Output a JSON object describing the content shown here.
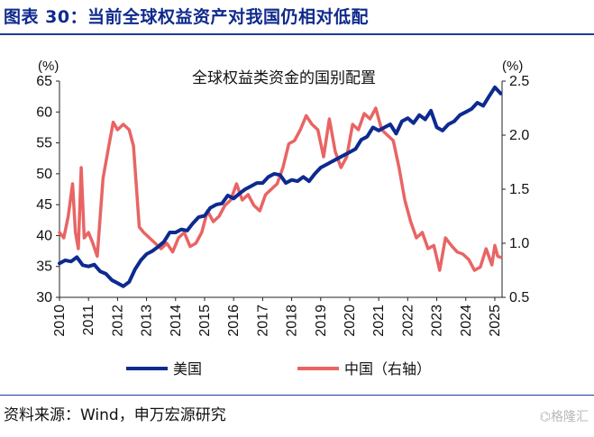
{
  "header": {
    "title": "图表 30：当前全球权益资产对我国仍相对低配"
  },
  "footer": {
    "source": "资料来源：Wind，申万宏源研究",
    "watermark": "⌬格隆汇"
  },
  "chart_data": {
    "type": "line",
    "title": "全球权益类资金的国别配置",
    "y_left": {
      "unit": "(%)",
      "ylim": [
        30,
        65
      ],
      "ticks": [
        "30",
        "35",
        "40",
        "45",
        "50",
        "55",
        "60",
        "65"
      ]
    },
    "y_right": {
      "unit": "(%)",
      "ylim": [
        0.5,
        2.5
      ],
      "ticks": [
        "0.5",
        "1.0",
        "1.5",
        "2.0",
        "2.5"
      ]
    },
    "x_ticks": [
      "2010",
      "2011",
      "2012",
      "2013",
      "2014",
      "2015",
      "2016",
      "2017",
      "2018",
      "2019",
      "2020",
      "2021",
      "2022",
      "2023",
      "2024",
      "2025"
    ],
    "x_range": [
      2010.0,
      2025.25
    ],
    "grid": false,
    "legend_position": "bottom",
    "colors": {
      "us": "#0d2a8f",
      "china": "#e96464"
    },
    "series": [
      {
        "name": "美国",
        "axis": "left",
        "x": [
          2010.0,
          2010.2,
          2010.4,
          2010.6,
          2010.8,
          2011.0,
          2011.2,
          2011.4,
          2011.6,
          2011.8,
          2012.0,
          2012.2,
          2012.4,
          2012.6,
          2012.8,
          2013.0,
          2013.2,
          2013.4,
          2013.6,
          2013.8,
          2014.0,
          2014.2,
          2014.4,
          2014.6,
          2014.8,
          2015.0,
          2015.2,
          2015.4,
          2015.6,
          2015.8,
          2016.0,
          2016.2,
          2016.4,
          2016.6,
          2016.8,
          2017.0,
          2017.2,
          2017.4,
          2017.6,
          2017.8,
          2018.0,
          2018.2,
          2018.4,
          2018.6,
          2018.8,
          2019.0,
          2019.2,
          2019.4,
          2019.6,
          2019.8,
          2020.0,
          2020.2,
          2020.4,
          2020.6,
          2020.8,
          2021.0,
          2021.2,
          2021.4,
          2021.6,
          2021.8,
          2022.0,
          2022.2,
          2022.4,
          2022.6,
          2022.8,
          2023.0,
          2023.2,
          2023.4,
          2023.6,
          2023.8,
          2024.0,
          2024.2,
          2024.4,
          2024.6,
          2024.8,
          2025.0,
          2025.1,
          2025.2
        ],
        "values": [
          35.5,
          36.0,
          35.8,
          36.5,
          35.2,
          35.0,
          35.3,
          34.2,
          33.8,
          32.8,
          32.3,
          31.8,
          32.5,
          34.5,
          36.0,
          37.0,
          37.5,
          38.2,
          39.0,
          40.5,
          40.5,
          41.0,
          40.8,
          42.0,
          43.0,
          43.2,
          44.5,
          45.0,
          45.2,
          46.5,
          46.0,
          46.8,
          47.5,
          48.0,
          48.5,
          48.5,
          49.5,
          50.0,
          49.8,
          48.5,
          49.0,
          48.8,
          49.5,
          48.8,
          50.0,
          51.0,
          51.5,
          52.0,
          52.5,
          53.0,
          53.5,
          54.0,
          55.5,
          56.0,
          57.5,
          57.0,
          57.5,
          58.0,
          56.5,
          58.5,
          59.0,
          58.2,
          59.5,
          58.8,
          60.2,
          57.5,
          57.0,
          58.0,
          58.5,
          59.5,
          60.0,
          60.5,
          61.5,
          61.0,
          62.5,
          64.0,
          63.5,
          63.0
        ]
      },
      {
        "name": "中国（右轴）",
        "axis": "right",
        "x": [
          2010.0,
          2010.15,
          2010.3,
          2010.45,
          2010.55,
          2010.65,
          2010.75,
          2010.85,
          2011.0,
          2011.15,
          2011.3,
          2011.5,
          2011.7,
          2011.85,
          2012.0,
          2012.2,
          2012.4,
          2012.55,
          2012.75,
          2012.9,
          2013.1,
          2013.3,
          2013.5,
          2013.7,
          2013.9,
          2014.1,
          2014.3,
          2014.5,
          2014.7,
          2014.9,
          2015.1,
          2015.3,
          2015.5,
          2015.7,
          2015.9,
          2016.1,
          2016.3,
          2016.5,
          2016.7,
          2016.9,
          2017.1,
          2017.3,
          2017.5,
          2017.7,
          2017.9,
          2018.1,
          2018.3,
          2018.5,
          2018.7,
          2018.9,
          2019.1,
          2019.3,
          2019.5,
          2019.7,
          2019.9,
          2020.1,
          2020.3,
          2020.5,
          2020.7,
          2020.9,
          2021.1,
          2021.3,
          2021.5,
          2021.7,
          2021.9,
          2022.1,
          2022.3,
          2022.5,
          2022.7,
          2022.9,
          2023.1,
          2023.3,
          2023.5,
          2023.7,
          2023.9,
          2024.1,
          2024.3,
          2024.5,
          2024.7,
          2024.9,
          2025.0,
          2025.1,
          2025.2
        ],
        "values": [
          1.1,
          1.05,
          1.25,
          1.55,
          1.1,
          0.95,
          1.7,
          1.05,
          1.1,
          1.0,
          0.88,
          1.6,
          1.9,
          2.12,
          2.05,
          2.1,
          2.05,
          1.9,
          1.15,
          1.1,
          1.05,
          1.0,
          0.95,
          1.0,
          0.92,
          1.05,
          1.1,
          0.97,
          1.0,
          1.1,
          1.3,
          1.2,
          1.25,
          1.35,
          1.4,
          1.55,
          1.4,
          1.45,
          1.35,
          1.3,
          1.45,
          1.5,
          1.55,
          1.7,
          1.92,
          1.95,
          2.05,
          2.18,
          2.1,
          2.05,
          1.8,
          2.15,
          1.85,
          1.7,
          1.8,
          2.1,
          2.05,
          2.2,
          2.15,
          2.25,
          2.05,
          2.0,
          1.95,
          1.7,
          1.4,
          1.2,
          1.05,
          1.1,
          0.95,
          0.98,
          0.75,
          1.05,
          0.98,
          0.92,
          0.9,
          0.85,
          0.75,
          0.78,
          0.95,
          0.8,
          0.98,
          0.88,
          0.87
        ]
      }
    ]
  }
}
